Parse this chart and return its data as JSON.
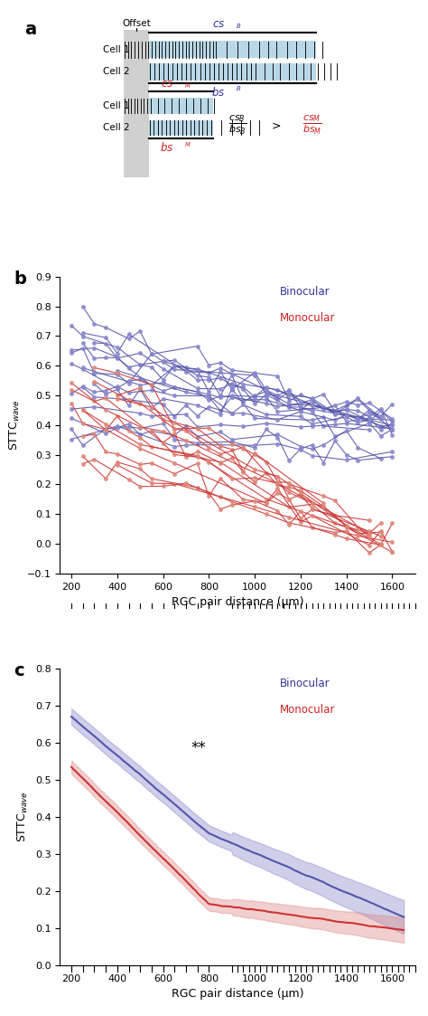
{
  "panel_a": {
    "title": "a",
    "bar_color": "#b8d8e8",
    "spike_color": "#111111",
    "gray_color": "#d0d0d0"
  },
  "panel_b": {
    "title": "b",
    "ylabel": "STTC$_{wave}$",
    "xlabel": "RGC pair distance (μm)",
    "xlim": [
      150,
      1700
    ],
    "ylim": [
      -0.1,
      0.9
    ],
    "yticks": [
      -0.1,
      0.0,
      0.1,
      0.2,
      0.3,
      0.4,
      0.5,
      0.6,
      0.7,
      0.8,
      0.9
    ],
    "xticks": [
      200,
      400,
      600,
      800,
      1000,
      1200,
      1400,
      1600
    ],
    "blue_color": "#5555aa",
    "blue_marker": "#8888cc",
    "red_color": "#cc3333",
    "red_marker": "#dd8877",
    "legend_blue": "Binocular",
    "legend_red": "Monocular"
  },
  "panel_c": {
    "title": "c",
    "ylabel": "STTC$_{wave}$",
    "xlabel": "RGC pair distance (μm)",
    "xlim": [
      150,
      1700
    ],
    "ylim": [
      0.0,
      0.8
    ],
    "yticks": [
      0.0,
      0.1,
      0.2,
      0.3,
      0.4,
      0.5,
      0.6,
      0.7,
      0.8
    ],
    "xticks": [
      200,
      400,
      600,
      800,
      1000,
      1200,
      1400,
      1600
    ],
    "blue_color": "#5555aa",
    "red_color": "#cc3333",
    "blue_fill": "#8888cc",
    "red_fill": "#dd8888",
    "legend_blue": "Binocular",
    "legend_red": "Monocular",
    "annotation": "**"
  }
}
